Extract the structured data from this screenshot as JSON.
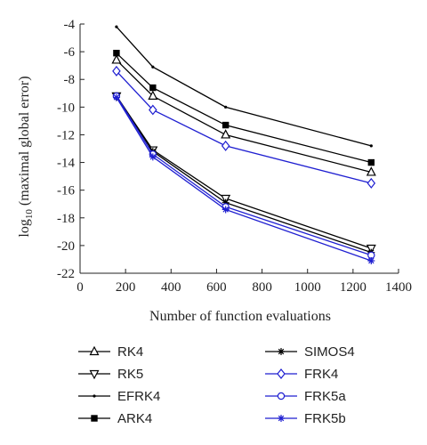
{
  "chart_data": {
    "type": "line",
    "title": "",
    "xlabel": "Number of function evaluations",
    "ylabel_main": "log",
    "ylabel_sub": "10",
    "ylabel_rest": " (maximal global error)",
    "xlim": [
      0,
      1400
    ],
    "ylim": [
      -22,
      -4
    ],
    "xticks": [
      0,
      200,
      400,
      600,
      800,
      1000,
      1200,
      1400
    ],
    "yticks": [
      -22,
      -20,
      -18,
      -16,
      -14,
      -12,
      -10,
      -8,
      -6,
      -4
    ],
    "grid": false,
    "legend_position": "bottom",
    "x": [
      160,
      320,
      640,
      1280
    ],
    "series": [
      {
        "name": "RK4",
        "values": [
          -6.6,
          -9.2,
          -12.0,
          -14.7
        ],
        "color": "#000000",
        "marker": "triangle-up"
      },
      {
        "name": "RK5",
        "values": [
          -9.2,
          -13.1,
          -16.6,
          -20.2
        ],
        "color": "#000000",
        "marker": "triangle-down"
      },
      {
        "name": "EFRK4",
        "values": [
          -4.2,
          -7.1,
          -10.0,
          -12.8
        ],
        "color": "#000000",
        "marker": "dot"
      },
      {
        "name": "ARK4",
        "values": [
          -6.1,
          -8.6,
          -11.3,
          -14.0
        ],
        "color": "#000000",
        "marker": "square"
      },
      {
        "name": "SIMOS4",
        "values": [
          -9.2,
          -13.2,
          -16.9,
          -20.5
        ],
        "color": "#000000",
        "marker": "star"
      },
      {
        "name": "FRK4",
        "values": [
          -7.4,
          -10.2,
          -12.8,
          -15.5
        ],
        "color": "#1f1fd1",
        "marker": "diamond"
      },
      {
        "name": "FRK5a",
        "values": [
          -9.2,
          -13.4,
          -17.2,
          -20.7
        ],
        "color": "#1f1fd1",
        "marker": "circle"
      },
      {
        "name": "FRK5b",
        "values": [
          -9.3,
          -13.6,
          -17.4,
          -21.1
        ],
        "color": "#1f1fd1",
        "marker": "star"
      }
    ]
  }
}
